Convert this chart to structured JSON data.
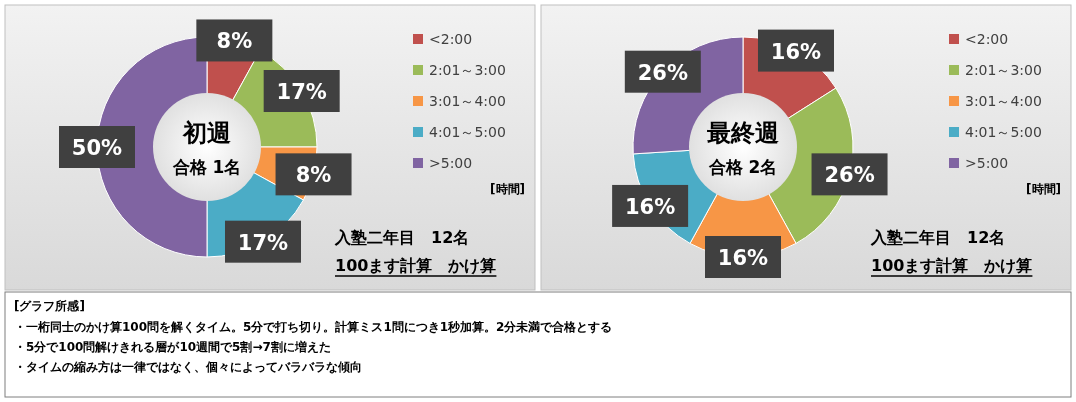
{
  "chart_data": [
    {
      "type": "donut",
      "title": "初週",
      "subtitle": "合格 1名",
      "categories": [
        "<2:00",
        "2:01～3:00",
        "3:01～4:00",
        "4:01～5:00",
        ">5:00"
      ],
      "values": [
        8,
        17,
        8,
        17,
        50
      ],
      "colors": [
        "#c0504d",
        "#9bbb59",
        "#f79646",
        "#4bacc6",
        "#8064a2"
      ],
      "value_labels": [
        "8%",
        "17%",
        "8%",
        "17%",
        "50%"
      ],
      "legend": "right",
      "legend_title": "[時間]",
      "annotations": [
        "入塾二年目　12名",
        "100ます計算　かけ算"
      ]
    },
    {
      "type": "donut",
      "title": "最終週",
      "subtitle": "合格 2名",
      "categories": [
        "<2:00",
        "2:01～3:00",
        "3:01～4:00",
        "4:01～5:00",
        ">5:00"
      ],
      "values": [
        16,
        26,
        16,
        16,
        26
      ],
      "colors": [
        "#c0504d",
        "#9bbb59",
        "#f79646",
        "#4bacc6",
        "#8064a2"
      ],
      "value_labels": [
        "16%",
        "26%",
        "16%",
        "16%",
        "26%"
      ],
      "legend": "right",
      "legend_title": "[時間]",
      "annotations": [
        "入塾二年目　12名",
        "100ます計算　かけ算"
      ]
    },
    {
      "type": "other",
      "title": "[グラフ所感]",
      "annotations": [
        "・一桁同士のかけ算100問を解くタイム。5分で打ち切り。計算ミス1問につき1秒加算。2分未満で合格とする",
        "・5分で100問解けきれる層が10週間で5割→7割に増えた",
        "・タイムの縮み方は一律ではなく、個々によってバラバラな傾向"
      ]
    }
  ]
}
